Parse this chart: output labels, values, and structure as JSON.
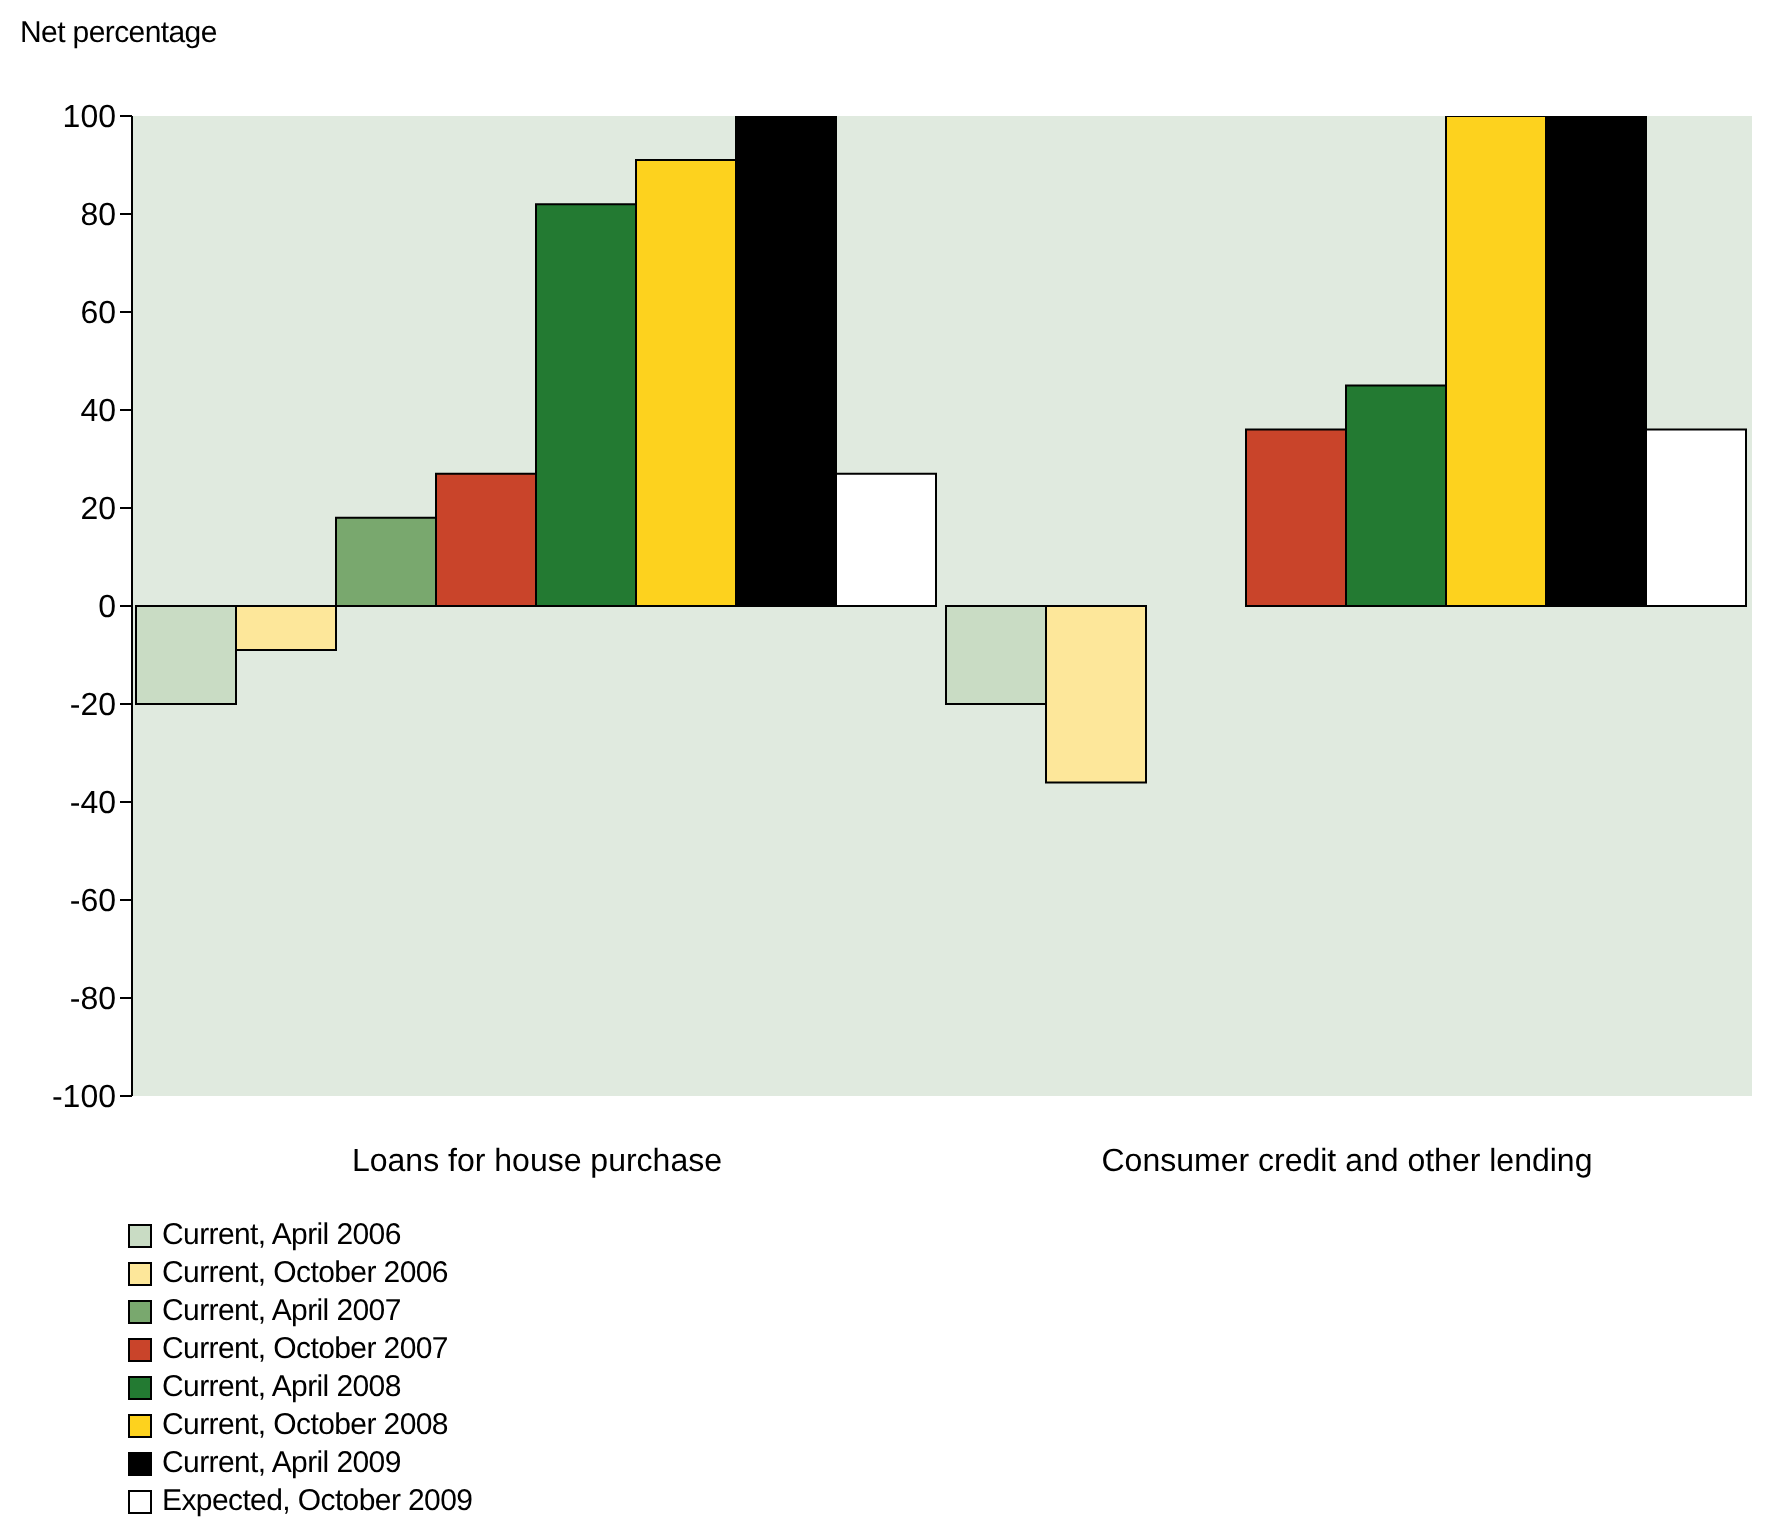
{
  "chart_data": {
    "type": "bar",
    "ylabel": "Net percentage",
    "categories": [
      "Loans for house purchase",
      "Consumer credit and other lending"
    ],
    "series": [
      {
        "name": "Current, April 2006",
        "color": "#c9dcc4",
        "values": [
          -20,
          -20
        ]
      },
      {
        "name": "Current, October 2006",
        "color": "#fde79a",
        "values": [
          -9,
          -36
        ]
      },
      {
        "name": "Current, April 2007",
        "color": "#79a86e",
        "values": [
          18,
          0
        ]
      },
      {
        "name": "Current, October 2007",
        "color": "#c9442a",
        "values": [
          27,
          36
        ]
      },
      {
        "name": "Current, April 2008",
        "color": "#237a32",
        "values": [
          82,
          45
        ]
      },
      {
        "name": "Current, October 2008",
        "color": "#fdd21e",
        "values": [
          91,
          100
        ]
      },
      {
        "name": "Current, April 2009",
        "color": "#000000",
        "values": [
          100,
          100
        ]
      },
      {
        "name": "Expected, October 2009",
        "color": "#ffffff",
        "values": [
          27,
          36
        ]
      }
    ],
    "ylim": [
      -100,
      100
    ],
    "yticks": [
      -100,
      -80,
      -60,
      -40,
      -20,
      0,
      20,
      40,
      60,
      80,
      100
    ],
    "grid": false,
    "legend": "bottom"
  }
}
